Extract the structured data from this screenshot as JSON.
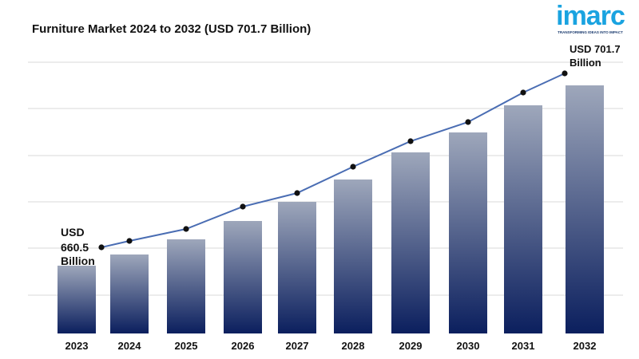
{
  "title": "Furniture Market 2024 to 2032 (USD 701.7 Billion)",
  "logo": {
    "word": "imarc",
    "tagline": "TRANSFORMING IDEAS INTO IMPACT"
  },
  "colors": {
    "bar_top": "#9ea7bb",
    "bar_bottom": "#0b1f5e",
    "line": "#4a6db3",
    "marker": "#111111",
    "grid": "#d9d9d9"
  },
  "chart_data": {
    "type": "bar",
    "title": "Furniture Market 2024 to 2032 (USD 701.7 Billion)",
    "categories": [
      "2023",
      "2024",
      "2025",
      "2026",
      "2027",
      "2028",
      "2029",
      "2030",
      "2031",
      "2032"
    ],
    "values": [
      85,
      99,
      118,
      141,
      165,
      193,
      227,
      252,
      286,
      311
    ],
    "line_values": [
      108,
      116,
      131,
      159,
      176,
      209,
      241,
      265,
      302,
      326
    ],
    "ylim": [
      0,
      340
    ],
    "grid": true,
    "legend": "none",
    "annotations": {
      "start": {
        "line1": "USD",
        "line2": "660.5",
        "line3": "Billion"
      },
      "end": {
        "line1": "USD 701.7",
        "line2": "Billion"
      }
    }
  }
}
